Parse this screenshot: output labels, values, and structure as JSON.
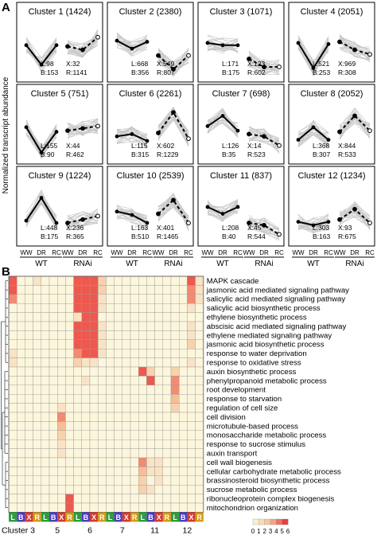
{
  "chart_data": [
    {
      "type": "line",
      "panel_label": "A",
      "ylabel": "Normalized transcript abundance",
      "x_groups": [
        {
          "name": "WT",
          "x": [
            "WW",
            "DR",
            "RC"
          ]
        },
        {
          "name": "RNAi",
          "x": [
            "WW",
            "DR",
            "RC"
          ]
        }
      ],
      "clusters": [
        {
          "title": "Cluster 1 (1424)",
          "stats": [
            "L:98",
            "X:32",
            "B:153",
            "R:1141"
          ],
          "wt": [
            0.6,
            -1.1,
            0.6
          ],
          "rnai": [
            0.5,
            0.2,
            1.3
          ]
        },
        {
          "title": "Cluster 2 (2380)",
          "stats": [
            "L:668",
            "X:549",
            "B:356",
            "R:807"
          ],
          "wt": [
            1.0,
            0.3,
            0.9
          ],
          "rnai": [
            -0.3,
            -1.5,
            -0.3
          ]
        },
        {
          "title": "Cluster 3 (1071)",
          "stats": [
            "L:171",
            "X:123",
            "B:175",
            "R:602"
          ],
          "wt": [
            0.8,
            0.6,
            0.6
          ],
          "rnai": [
            -0.6,
            -1.3,
            -1.3
          ]
        },
        {
          "title": "Cluster 4 (2051)",
          "stats": [
            "L:521",
            "X:969",
            "B:253",
            "R:308"
          ],
          "wt": [
            0.8,
            -1.4,
            0.7
          ],
          "rnai": [
            0.9,
            0.2,
            -0.2
          ]
        },
        {
          "title": "Cluster 5 (751)",
          "stats": [
            "L:155",
            "X:44",
            "B:90",
            "R:462"
          ],
          "wt": [
            0.6,
            -1.6,
            0.2
          ],
          "rnai": [
            0.3,
            0.5,
            0.7
          ]
        },
        {
          "title": "Cluster 6 (2261)",
          "stats": [
            "L:115",
            "X:602",
            "B:315",
            "R:1229"
          ],
          "wt": [
            -0.2,
            0.0,
            -0.6
          ],
          "rnai": [
            0.1,
            1.9,
            -0.4
          ]
        },
        {
          "title": "Cluster 7 (698)",
          "stats": [
            "L:126",
            "X:14",
            "B:35",
            "R:523"
          ],
          "wt": [
            0.7,
            1.6,
            0.3
          ],
          "rnai": [
            0.0,
            -0.2,
            -1.0
          ]
        },
        {
          "title": "Cluster 8 (2052)",
          "stats": [
            "L:368",
            "X:844",
            "B:307",
            "R:533"
          ],
          "wt": [
            -0.5,
            0.6,
            -0.5
          ],
          "rnai": [
            0.2,
            1.6,
            0.3
          ]
        },
        {
          "title": "Cluster 9 (1224)",
          "stats": [
            "L:448",
            "X:236",
            "B:175",
            "R:365"
          ],
          "wt": [
            -0.4,
            1.6,
            -0.6
          ],
          "rnai": [
            -0.6,
            -0.3,
            0.0
          ]
        },
        {
          "title": "Cluster 10 (2539)",
          "stats": [
            "L:163",
            "X:401",
            "B:510",
            "R:1465"
          ],
          "wt": [
            0.4,
            0.1,
            -0.6
          ],
          "rnai": [
            0.2,
            1.4,
            -0.6
          ]
        },
        {
          "title": "Cluster 11 (837)",
          "stats": [
            "L:208",
            "X:45",
            "B:40",
            "R:544"
          ],
          "wt": [
            0.8,
            0.2,
            0.8
          ],
          "rnai": [
            -0.6,
            -0.8,
            -1.6
          ]
        },
        {
          "title": "Cluster 12 (1234)",
          "stats": [
            "L:303",
            "X:93",
            "B:163",
            "R:675"
          ],
          "wt": [
            -0.5,
            -0.8,
            -0.5
          ],
          "rnai": [
            -0.3,
            0.6,
            -0.6
          ]
        }
      ],
      "wt_style": "solid",
      "rnai_style": "dashed"
    },
    {
      "type": "heatmap",
      "panel_label": "B",
      "rows": [
        "MAPK cascade",
        "jasmonic acid mediated signaling pathway",
        "salicylic acid mediated signaling pathway",
        "salicylic acid biosynthetic process",
        "ethylene biosynthetic process",
        "abscisic acid mediated signaling pathway",
        "ethylene mediated signaling pathway",
        "jasmonic acid biosynthetic process",
        "response to water deprivation",
        "response to oxidative stress",
        "auxin biosynthetic process",
        "phenylpropanoid metabolic process",
        "root development",
        "response to starvation",
        "regulation of cell size",
        "cell division",
        "microtubule-based process",
        "monosaccharide metabolic process",
        "response to sucrose stimulus",
        "auxin transport",
        "cell wall biogenesis",
        "cellular carbohydrate metabolic process",
        "brassinosteroid biosynthetic process",
        "sucrose metabolic process",
        "ribonucleoprotein complex biogenesis",
        "mitochondrion organization"
      ],
      "column_letters": [
        "L",
        "B",
        "X",
        "R",
        "L",
        "B",
        "X",
        "R",
        "L",
        "B",
        "X",
        "R",
        "L",
        "B",
        "X",
        "R",
        "L",
        "B",
        "X",
        "R",
        "L",
        "B",
        "X",
        "R"
      ],
      "column_letter_colors": {
        "L": "#2e9d3e",
        "B": "#4a3cc0",
        "X": "#d43a2f",
        "R": "#d49a18"
      },
      "cluster_labels": [
        "Cluster 3",
        "5",
        "6",
        "7",
        "11",
        "12"
      ],
      "values": [
        [
          5,
          0,
          0,
          1,
          0,
          0,
          0,
          0,
          5,
          5,
          5,
          2,
          0,
          0,
          0,
          0,
          0,
          0,
          0,
          0,
          0,
          0,
          5,
          1
        ],
        [
          5,
          0,
          0,
          0,
          0,
          0,
          0,
          0,
          5,
          5,
          5,
          2,
          0,
          0,
          0,
          0,
          0,
          0,
          0,
          0,
          0,
          0,
          4,
          1
        ],
        [
          4,
          0,
          0,
          0,
          0,
          0,
          0,
          0,
          5,
          5,
          5,
          1,
          0,
          0,
          0,
          0,
          0,
          0,
          0,
          0,
          0,
          0,
          4,
          1
        ],
        [
          0,
          0,
          0,
          0,
          0,
          0,
          0,
          0,
          5,
          5,
          5,
          1,
          0,
          0,
          0,
          0,
          0,
          0,
          0,
          0,
          0,
          0,
          1,
          0
        ],
        [
          0,
          0,
          0,
          0,
          0,
          0,
          0,
          0,
          1,
          5,
          5,
          0,
          0,
          0,
          0,
          0,
          0,
          0,
          0,
          0,
          0,
          0,
          0,
          0
        ],
        [
          0,
          0,
          0,
          0,
          0,
          0,
          0,
          0,
          5,
          5,
          5,
          1,
          0,
          0,
          0,
          0,
          0,
          0,
          0,
          0,
          0,
          0,
          1,
          0
        ],
        [
          0,
          0,
          0,
          0,
          0,
          0,
          0,
          0,
          5,
          5,
          5,
          1,
          0,
          0,
          0,
          0,
          0,
          0,
          0,
          0,
          0,
          0,
          1,
          0
        ],
        [
          0,
          0,
          0,
          0,
          0,
          0,
          0,
          0,
          5,
          5,
          5,
          1,
          0,
          0,
          0,
          0,
          0,
          0,
          0,
          0,
          0,
          0,
          2,
          0
        ],
        [
          1,
          0,
          0,
          0,
          0,
          0,
          0,
          0,
          4,
          5,
          5,
          1,
          0,
          0,
          0,
          0,
          0,
          0,
          0,
          0,
          0,
          0,
          0,
          0
        ],
        [
          1,
          0,
          0,
          0,
          0,
          0,
          0,
          0,
          2,
          1,
          1,
          0,
          0,
          0,
          0,
          0,
          0,
          0,
          0,
          0,
          0,
          0,
          1,
          0
        ],
        [
          0,
          0,
          0,
          0,
          0,
          0,
          0,
          0,
          0,
          0,
          0,
          0,
          0,
          0,
          0,
          0,
          5,
          2,
          0,
          0,
          2,
          0,
          0,
          0
        ],
        [
          0,
          0,
          0,
          0,
          0,
          0,
          0,
          0,
          0,
          1,
          0,
          0,
          0,
          0,
          0,
          0,
          0,
          5,
          0,
          0,
          4,
          0,
          0,
          0
        ],
        [
          0,
          0,
          0,
          0,
          0,
          0,
          0,
          0,
          0,
          0,
          0,
          0,
          0,
          0,
          0,
          0,
          0,
          0,
          0,
          0,
          4,
          0,
          0,
          0
        ],
        [
          0,
          0,
          0,
          0,
          0,
          0,
          0,
          0,
          0,
          0,
          0,
          0,
          0,
          0,
          0,
          0,
          0,
          0,
          0,
          0,
          3,
          0,
          0,
          0
        ],
        [
          0,
          0,
          0,
          0,
          0,
          0,
          1,
          0,
          0,
          0,
          0,
          0,
          0,
          0,
          0,
          0,
          0,
          0,
          0,
          0,
          2,
          0,
          0,
          0
        ],
        [
          0,
          0,
          0,
          0,
          0,
          0,
          4,
          0,
          0,
          0,
          0,
          0,
          0,
          0,
          0,
          0,
          0,
          0,
          0,
          0,
          0,
          0,
          0,
          0
        ],
        [
          0,
          0,
          0,
          0,
          0,
          0,
          3,
          0,
          0,
          0,
          0,
          0,
          0,
          0,
          0,
          0,
          0,
          0,
          0,
          0,
          0,
          0,
          0,
          0
        ],
        [
          0,
          0,
          0,
          0,
          0,
          0,
          2,
          0,
          0,
          0,
          0,
          0,
          0,
          0,
          0,
          0,
          0,
          0,
          0,
          0,
          0,
          0,
          0,
          0
        ],
        [
          0,
          0,
          0,
          0,
          0,
          0,
          1,
          0,
          0,
          0,
          0,
          0,
          0,
          0,
          0,
          0,
          0,
          0,
          0,
          0,
          0,
          0,
          0,
          0
        ],
        [
          0,
          0,
          0,
          0,
          0,
          0,
          1,
          0,
          0,
          0,
          0,
          0,
          0,
          0,
          0,
          0,
          0,
          0,
          0,
          0,
          0,
          0,
          0,
          0
        ],
        [
          0,
          0,
          0,
          0,
          0,
          0,
          0,
          0,
          0,
          0,
          0,
          0,
          0,
          0,
          0,
          0,
          4,
          1,
          1,
          0,
          0,
          0,
          0,
          0
        ],
        [
          0,
          0,
          0,
          0,
          0,
          0,
          0,
          0,
          0,
          0,
          0,
          0,
          0,
          0,
          0,
          0,
          3,
          1,
          1,
          0,
          0,
          0,
          0,
          0
        ],
        [
          0,
          0,
          0,
          0,
          0,
          0,
          0,
          0,
          0,
          0,
          0,
          0,
          0,
          0,
          0,
          0,
          2,
          0,
          1,
          0,
          0,
          0,
          0,
          0
        ],
        [
          0,
          0,
          0,
          0,
          0,
          0,
          0,
          0,
          0,
          0,
          0,
          0,
          0,
          0,
          0,
          0,
          2,
          1,
          0,
          0,
          0,
          0,
          0,
          0
        ],
        [
          0,
          0,
          0,
          0,
          0,
          0,
          0,
          5,
          0,
          0,
          0,
          0,
          0,
          0,
          0,
          0,
          0,
          0,
          0,
          0,
          0,
          0,
          0,
          0
        ],
        [
          0,
          0,
          0,
          0,
          0,
          0,
          0,
          5,
          0,
          0,
          0,
          0,
          0,
          0,
          0,
          0,
          0,
          0,
          0,
          0,
          0,
          0,
          0,
          0
        ]
      ],
      "color_scale": {
        "min": 0,
        "max": 6,
        "ticks": [
          "0",
          "1",
          "2",
          "3",
          "4",
          "5",
          "6"
        ],
        "low_color": "#fbf6dc",
        "high_color": "#e8262b"
      }
    }
  ]
}
